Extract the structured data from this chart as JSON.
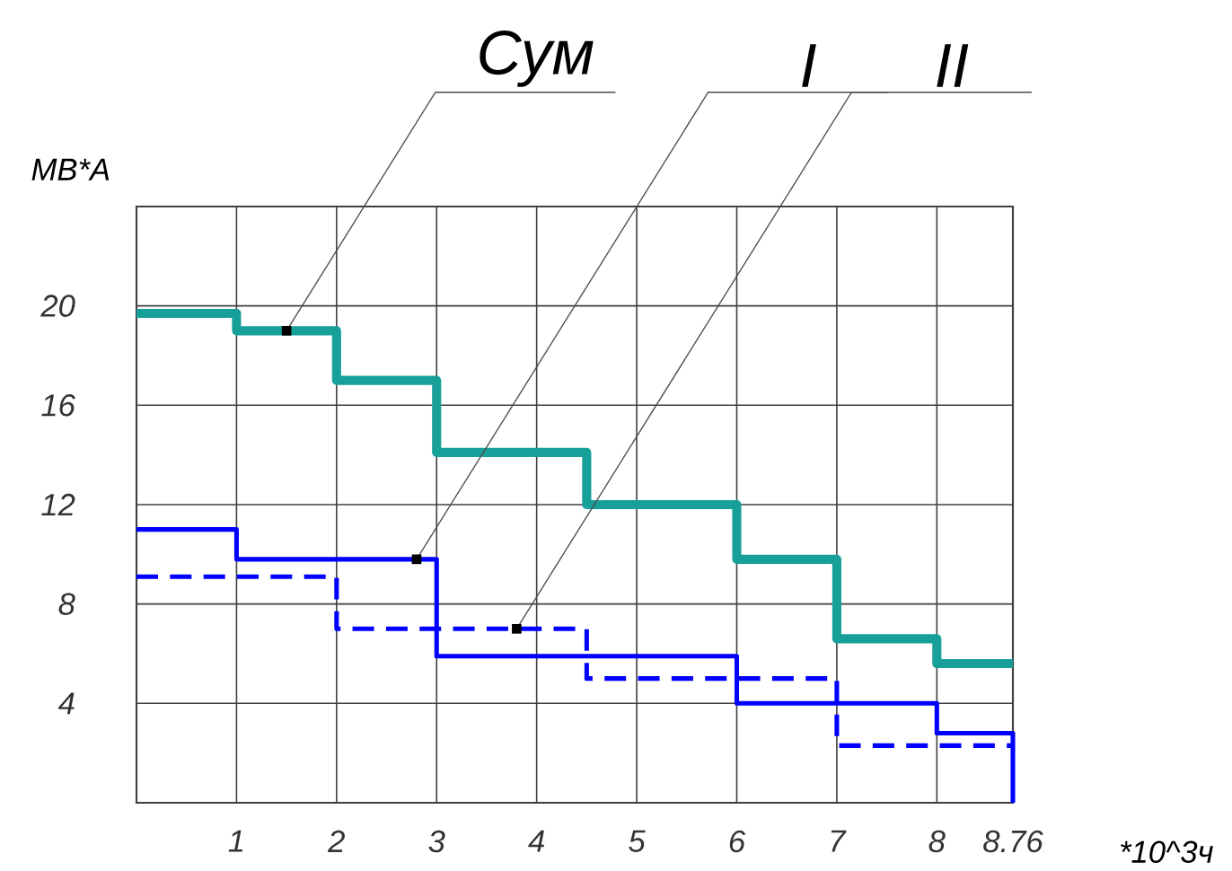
{
  "chart_data": {
    "type": "step",
    "xlabel": "*10^3ч",
    "ylabel": "МВ*А",
    "xlim": [
      0,
      8.76
    ],
    "ylim": [
      0,
      24
    ],
    "xticks": [
      1,
      2,
      3,
      4,
      5,
      6,
      7,
      8,
      8.76
    ],
    "yticks": [
      4,
      8,
      12,
      16,
      20
    ],
    "grid": true,
    "series": [
      {
        "color": "#17a09a",
        "line_style": "solid",
        "x": [
          0,
          1,
          2,
          3,
          4.5,
          6,
          7,
          8,
          8.76
        ],
        "values": [
          19.7,
          19,
          17,
          14.1,
          12,
          9.8,
          6.6,
          5.6,
          5.6
        ]
      },
      {
        "color": "#0000ff",
        "line_style": "solid",
        "x": [
          0,
          1,
          3,
          6,
          8,
          8.76
        ],
        "values": [
          11,
          9.8,
          5.9,
          4,
          2.8,
          0
        ]
      },
      {
        "color": "#0000ff",
        "line_style": "dashed",
        "x": [
          0,
          2,
          4.5,
          7,
          8.76
        ],
        "values": [
          9.1,
          7,
          5,
          2.3,
          2.3
        ]
      }
    ],
    "annotations": [
      {
        "text": "Сум",
        "x": 1.5,
        "y": 19
      },
      {
        "text": "I",
        "x": 2.8,
        "y": 9.8
      },
      {
        "text": "II",
        "x": 3.8,
        "y": 7
      }
    ]
  }
}
